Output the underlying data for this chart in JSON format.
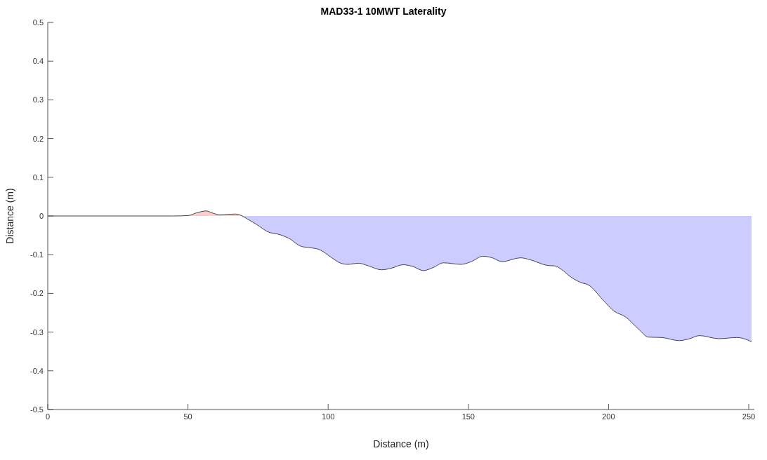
{
  "chart_data": {
    "type": "area",
    "title": "MAD33-1 10MWT Laterality",
    "xlabel": "Distance (m)",
    "ylabel": "Distance (m)",
    "xlim": [
      0,
      252
    ],
    "xticks": [
      0,
      50,
      100,
      150,
      200,
      250
    ],
    "ylim": [
      -0.5,
      0.5
    ],
    "yticks": [
      -0.5,
      -0.4,
      -0.3,
      -0.2,
      -0.1,
      0,
      0.1,
      0.2,
      0.3,
      0.4,
      0.5
    ],
    "grid": false,
    "legend": false,
    "series": [
      {
        "color": "#ffcccc",
        "x": [
          0,
          45,
          50,
          53,
          56.5,
          59,
          61.4,
          64,
          67,
          69.4
        ],
        "values": [
          0,
          0,
          0.001,
          0.008,
          0.013,
          0.007,
          0.003,
          0.004,
          0.005,
          0
        ]
      },
      {
        "color": "#ccccff",
        "x": [
          69.4,
          74.3,
          79.2,
          81.6,
          85.8,
          90.6,
          93.8,
          97.2,
          101.1,
          104.5,
          107,
          110.9,
          114,
          119.1,
          122.5,
          126.7,
          130,
          134,
          137.5,
          141.1,
          147.4,
          151,
          155.2,
          158.5,
          162,
          168.6,
          172,
          178.4,
          180.8,
          183.2,
          186.4,
          189.8,
          193,
          197.9,
          202,
          205.9,
          210.8,
          214.2,
          219,
          225.1,
          228.5,
          232.5,
          239.3,
          245.9,
          251
        ],
        "values": [
          0,
          -0.021,
          -0.043,
          -0.046,
          -0.057,
          -0.079,
          -0.082,
          -0.088,
          -0.107,
          -0.122,
          -0.125,
          -0.122,
          -0.128,
          -0.139,
          -0.135,
          -0.126,
          -0.13,
          -0.141,
          -0.133,
          -0.121,
          -0.125,
          -0.118,
          -0.104,
          -0.108,
          -0.118,
          -0.108,
          -0.113,
          -0.128,
          -0.129,
          -0.138,
          -0.157,
          -0.171,
          -0.179,
          -0.216,
          -0.246,
          -0.26,
          -0.293,
          -0.313,
          -0.314,
          -0.322,
          -0.318,
          -0.309,
          -0.317,
          -0.314,
          -0.325
        ]
      }
    ]
  }
}
